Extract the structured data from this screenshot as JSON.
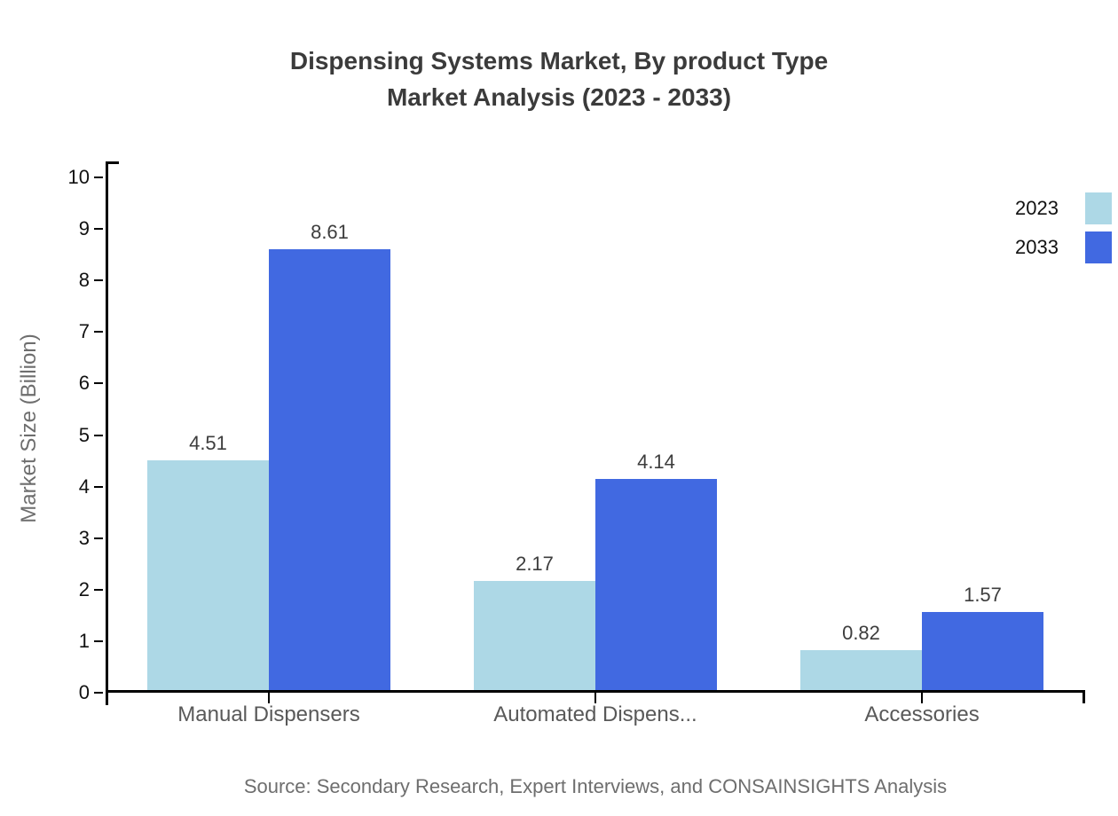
{
  "chart_data": {
    "type": "bar",
    "title": "Dispensing Systems Market, By product Type",
    "subtitle": "Market Analysis (2023 - 2033)",
    "categories": [
      "Manual Dispensers",
      "Automated Dispens...",
      "Accessories"
    ],
    "series": [
      {
        "name": "2023",
        "color": "#ADD8E6",
        "values": [
          4.51,
          2.17,
          0.82
        ]
      },
      {
        "name": "2033",
        "color": "#4169E1",
        "values": [
          8.61,
          4.14,
          1.57
        ]
      }
    ],
    "ylabel": "Market Size (Billion)",
    "ylim": [
      0,
      10
    ],
    "ytick_step": 1,
    "yticks": [
      0,
      1,
      2,
      3,
      4,
      5,
      6,
      7,
      8,
      9,
      10
    ],
    "legend_position": "top-right",
    "grid": false,
    "value_label_decimals": 2
  },
  "source_note": "Source: Secondary Research, Expert Interviews, and CONSAINSIGHTS Analysis",
  "colors": {
    "series_2023": "#ADD8E6",
    "series_2033": "#4169E1",
    "axis": "#000000",
    "title_text": "#3b3b3b",
    "category_label_text": "#595959",
    "muted_text": "#6e6e6e"
  }
}
